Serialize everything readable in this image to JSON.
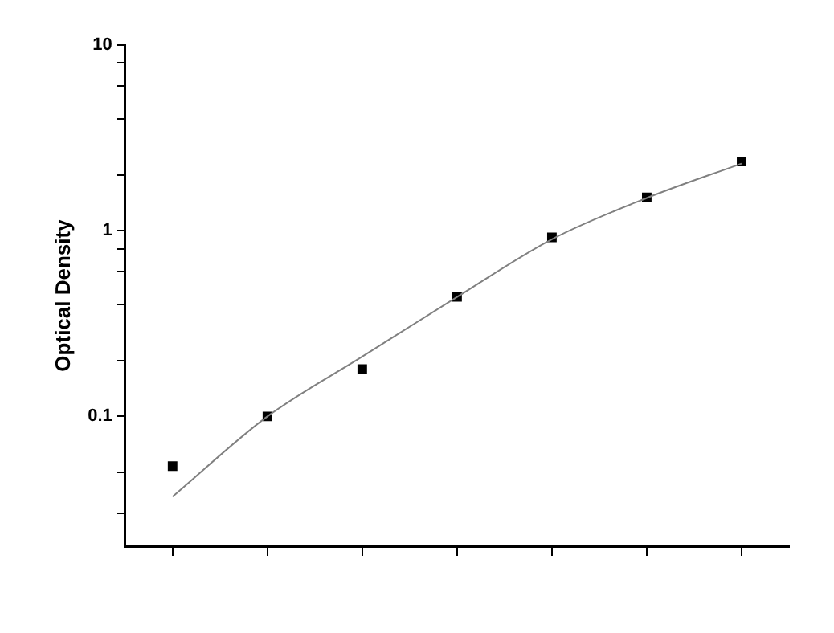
{
  "chart_data": {
    "type": "scatter",
    "ylabel": "Optical Density",
    "categories": [
      null,
      null,
      null,
      null,
      null,
      null,
      null
    ],
    "series": [
      {
        "type": "scatter",
        "color": "#000000",
        "marker": "square",
        "values": [
          0.054,
          0.1,
          0.18,
          0.44,
          0.92,
          1.51,
          2.36
        ]
      },
      {
        "type": "line",
        "color": "#808080",
        "marker": "none",
        "line_style": "solid",
        "values": [
          0.037,
          0.1,
          0.21,
          0.44,
          0.9,
          1.5,
          2.3
        ]
      }
    ],
    "log": "y",
    "ylim": [
      0.02,
      10
    ],
    "yticks": [
      {
        "value": 0.03,
        "label": null
      },
      {
        "value": 0.05,
        "label": null
      },
      0.1,
      {
        "value": 0.2,
        "label": null
      },
      {
        "value": 0.4,
        "label": null
      },
      {
        "value": 0.6,
        "label": null
      },
      {
        "value": 0.8,
        "label": null
      },
      1,
      {
        "value": 2,
        "label": null
      },
      {
        "value": 4,
        "label": null
      },
      {
        "value": 6,
        "label": null
      },
      {
        "value": 8,
        "label": null
      },
      10
    ],
    "grid": false,
    "legend": false,
    "tick_labels": "y"
  }
}
